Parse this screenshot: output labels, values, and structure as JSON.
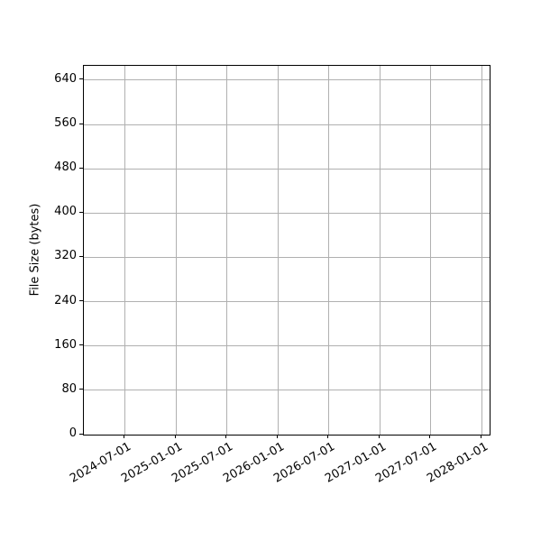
{
  "figure": {
    "background_color": "#ffffff",
    "text_color": "#000000"
  },
  "chart_data": {
    "type": "line",
    "title": "",
    "xlabel": "",
    "ylabel": "File Size (bytes)",
    "x_tick_labels": [
      "2024-07-01",
      "2025-01-01",
      "2025-07-01",
      "2026-01-01",
      "2026-07-01",
      "2027-01-01",
      "2027-07-01",
      "2028-01-01"
    ],
    "x_tick_rotation_deg": 30,
    "y_ticks": [
      0,
      80,
      160,
      240,
      320,
      400,
      480,
      560,
      640
    ],
    "ylim": [
      0,
      666
    ],
    "grid": true,
    "grid_color": "#b0b0b0",
    "spine_color": "#000000",
    "legend": "none",
    "series": []
  }
}
